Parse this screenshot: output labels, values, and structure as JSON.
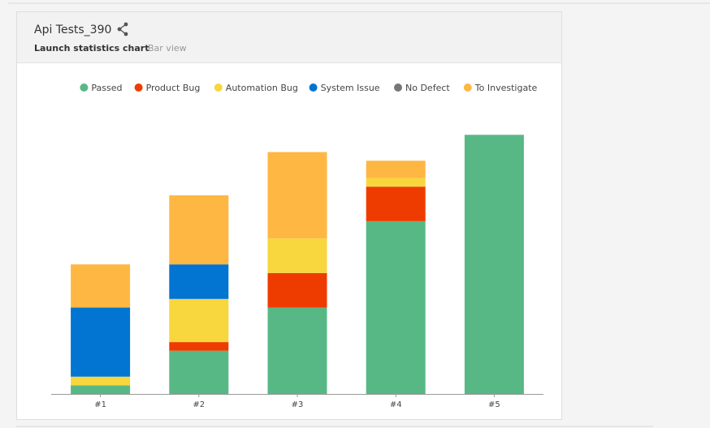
{
  "widget": {
    "title": "Api Tests_390",
    "subtitle": "Launch statistics chart",
    "view_mode": "Bar view",
    "share_icon": "share-icon"
  },
  "chart_data": {
    "type": "bar",
    "stacked": true,
    "categories": [
      "#1",
      "#2",
      "#3",
      "#4",
      "#5"
    ],
    "series": [
      {
        "name": "Passed",
        "color": "#57b886",
        "values": [
          1,
          5,
          10,
          20,
          30
        ]
      },
      {
        "name": "Product Bug",
        "color": "#ee3c00",
        "values": [
          0,
          1,
          4,
          4,
          0
        ]
      },
      {
        "name": "Automation Bug",
        "color": "#f7d63e",
        "values": [
          1,
          5,
          4,
          1,
          0
        ]
      },
      {
        "name": "System Issue",
        "color": "#0274d1",
        "values": [
          8,
          4,
          0,
          0,
          0
        ]
      },
      {
        "name": "No Defect",
        "color": "#777777",
        "values": [
          0,
          0,
          0,
          0,
          0
        ]
      },
      {
        "name": "To Investigate",
        "color": "#ffb743",
        "values": [
          5,
          8,
          10,
          2,
          0
        ]
      }
    ],
    "ylim": [
      0,
      32
    ],
    "grid": false,
    "legend_position": "top"
  }
}
